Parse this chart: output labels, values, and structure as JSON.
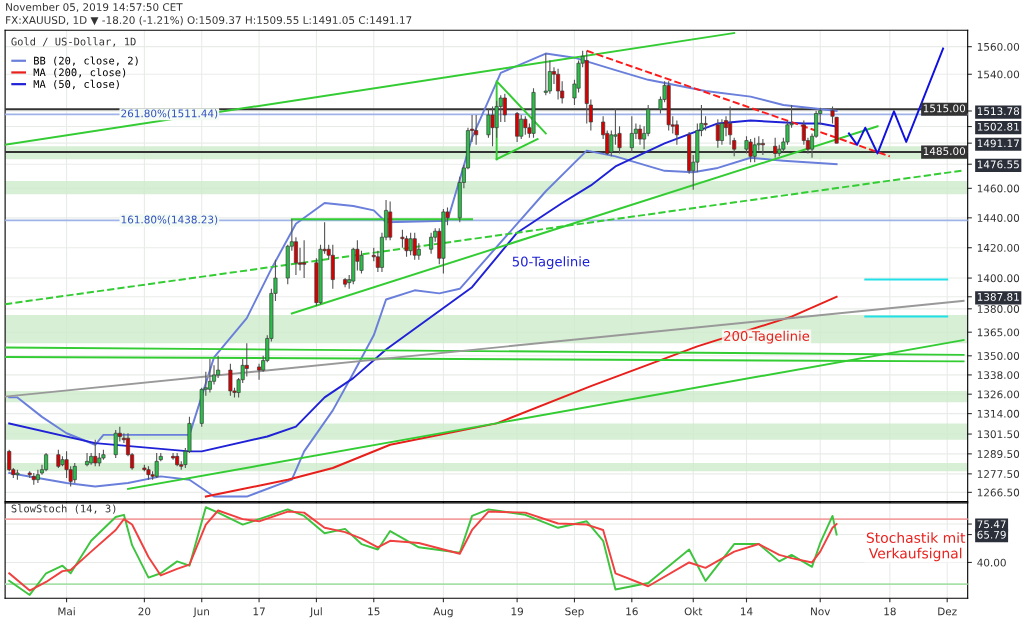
{
  "chart_data": [
    {
      "type": "candlestick",
      "title": "Gold / US-Dollar, 1D",
      "subtitle": "FX:XAUUSD, 1D ▼ -18.20 (-1.21%) O:1509.37 H:1509.55 L:1491.05 C:1491.17",
      "x": [
        "2019-04-17",
        "2019-04-18",
        "2019-04-19",
        "2019-04-22",
        "2019-04-23",
        "2019-04-24",
        "2019-04-25",
        "2019-04-26",
        "2019-04-29",
        "2019-04-30",
        "2019-05-01",
        "2019-05-02",
        "2019-05-03",
        "2019-05-06",
        "2019-05-07",
        "2019-05-08",
        "2019-05-09",
        "2019-05-10",
        "2019-05-13",
        "2019-05-14",
        "2019-05-15",
        "2019-05-16",
        "2019-05-17",
        "2019-05-20",
        "2019-05-21",
        "2019-05-22",
        "2019-05-23",
        "2019-05-24",
        "2019-05-27",
        "2019-05-28",
        "2019-05-29",
        "2019-05-30",
        "2019-05-31",
        "2019-06-03",
        "2019-06-04",
        "2019-06-05",
        "2019-06-06",
        "2019-06-07",
        "2019-06-10",
        "2019-06-11",
        "2019-06-12",
        "2019-06-13",
        "2019-06-14",
        "2019-06-17",
        "2019-06-18",
        "2019-06-19",
        "2019-06-20",
        "2019-06-21",
        "2019-06-24",
        "2019-06-25",
        "2019-06-26",
        "2019-06-27",
        "2019-06-28",
        "2019-07-01",
        "2019-07-02",
        "2019-07-03",
        "2019-07-04",
        "2019-07-05",
        "2019-07-08",
        "2019-07-09",
        "2019-07-10",
        "2019-07-11",
        "2019-07-12",
        "2019-07-15",
        "2019-07-16",
        "2019-07-17",
        "2019-07-18",
        "2019-07-19",
        "2019-07-22",
        "2019-07-23",
        "2019-07-24",
        "2019-07-25",
        "2019-07-26",
        "2019-07-29",
        "2019-07-30",
        "2019-07-31",
        "2019-08-01",
        "2019-08-02",
        "2019-08-05",
        "2019-08-06",
        "2019-08-07",
        "2019-08-08",
        "2019-08-09",
        "2019-08-12",
        "2019-08-13",
        "2019-08-14",
        "2019-08-15",
        "2019-08-16",
        "2019-08-19",
        "2019-08-20",
        "2019-08-21",
        "2019-08-22",
        "2019-08-23",
        "2019-08-26",
        "2019-08-27",
        "2019-08-28",
        "2019-08-29",
        "2019-08-30",
        "2019-09-02",
        "2019-09-03",
        "2019-09-04",
        "2019-09-05",
        "2019-09-06",
        "2019-09-09",
        "2019-09-10",
        "2019-09-11",
        "2019-09-12",
        "2019-09-13",
        "2019-09-16",
        "2019-09-17",
        "2019-09-18",
        "2019-09-19",
        "2019-09-20",
        "2019-09-23",
        "2019-09-24",
        "2019-09-25",
        "2019-09-26",
        "2019-09-27",
        "2019-09-30",
        "2019-10-01",
        "2019-10-02",
        "2019-10-03",
        "2019-10-04",
        "2019-10-07",
        "2019-10-08",
        "2019-10-09",
        "2019-10-10",
        "2019-10-11",
        "2019-10-14",
        "2019-10-15",
        "2019-10-16",
        "2019-10-17",
        "2019-10-18",
        "2019-10-21",
        "2019-10-22",
        "2019-10-23",
        "2019-10-24",
        "2019-10-25",
        "2019-10-28",
        "2019-10-29",
        "2019-10-30",
        "2019-10-31",
        "2019-11-01",
        "2019-11-04",
        "2019-11-05"
      ],
      "ohlc": [
        [
          1291,
          1292,
          1279,
          1280
        ],
        [
          1280,
          1281,
          1275,
          1277
        ],
        [
          1277,
          1280,
          1274,
          1278
        ],
        [
          1278,
          1279,
          1275,
          1277
        ],
        [
          1276,
          1278,
          1271,
          1274
        ],
        [
          1274,
          1280,
          1272,
          1277
        ],
        [
          1278,
          1283,
          1277,
          1280
        ],
        [
          1280,
          1290,
          1279,
          1289
        ],
        [
          1289,
          1292,
          1281,
          1282
        ],
        [
          1283,
          1288,
          1282,
          1286
        ],
        [
          1286,
          1291,
          1275,
          1280
        ],
        [
          1280,
          1282,
          1270,
          1273
        ],
        [
          1274,
          1284,
          1272,
          1282
        ],
        [
          1283,
          1290,
          1282,
          1285
        ],
        [
          1284,
          1290,
          1283,
          1288
        ],
        [
          1288,
          1298,
          1282,
          1284
        ],
        [
          1284,
          1290,
          1282,
          1287
        ],
        [
          1287,
          1292,
          1286,
          1289
        ],
        [
          1289,
          1304,
          1287,
          1302
        ],
        [
          1302,
          1306,
          1297,
          1300
        ],
        [
          1299,
          1302,
          1296,
          1298
        ],
        [
          1299,
          1302,
          1288,
          1289
        ],
        [
          1289,
          1290,
          1280,
          1281
        ],
        [
          1281,
          1283,
          1279,
          1280
        ],
        [
          1280,
          1282,
          1274,
          1277
        ],
        [
          1277,
          1279,
          1274,
          1276
        ],
        [
          1276,
          1290,
          1275,
          1285
        ],
        [
          1286,
          1290,
          1285,
          1288
        ],
        [
          1288,
          1290,
          1286,
          1287
        ],
        [
          1288,
          1290,
          1282,
          1283
        ],
        [
          1283,
          1285,
          1280,
          1282
        ],
        [
          1283,
          1293,
          1281,
          1291
        ],
        [
          1291,
          1312,
          1290,
          1308
        ],
        [
          1308,
          1330,
          1306,
          1329
        ],
        [
          1329,
          1340,
          1325,
          1330
        ],
        [
          1329,
          1348,
          1327,
          1334
        ],
        [
          1334,
          1344,
          1332,
          1338
        ],
        [
          1338,
          1350,
          1336,
          1341
        ],
        [
          1341,
          1345,
          1325,
          1328
        ],
        [
          1328,
          1330,
          1324,
          1327
        ],
        [
          1327,
          1336,
          1324,
          1335
        ],
        [
          1335,
          1348,
          1333,
          1344
        ],
        [
          1344,
          1358,
          1337,
          1342
        ],
        [
          1343,
          1345,
          1335,
          1341
        ],
        [
          1341,
          1350,
          1340,
          1347
        ],
        [
          1347,
          1363,
          1346,
          1361
        ],
        [
          1361,
          1393,
          1359,
          1390
        ],
        [
          1390,
          1412,
          1385,
          1400
        ],
        [
          1400,
          1422,
          1396,
          1421
        ],
        [
          1421,
          1439,
          1418,
          1424
        ],
        [
          1424,
          1427,
          1402,
          1410
        ],
        [
          1410,
          1420,
          1405,
          1409
        ],
        [
          1410,
          1425,
          1400,
          1409
        ],
        [
          1410,
          1413,
          1382,
          1384
        ],
        [
          1384,
          1422,
          1383,
          1419
        ],
        [
          1419,
          1437,
          1416,
          1418
        ],
        [
          1419,
          1422,
          1412,
          1415
        ],
        [
          1415,
          1422,
          1393,
          1399
        ],
        [
          1399,
          1400,
          1394,
          1396
        ],
        [
          1397,
          1402,
          1393,
          1399
        ],
        [
          1398,
          1420,
          1396,
          1419
        ],
        [
          1419,
          1425,
          1405,
          1411
        ],
        [
          1405,
          1418,
          1403,
          1415
        ],
        [
          1415,
          1420,
          1411,
          1414
        ],
        [
          1414,
          1418,
          1404,
          1407
        ],
        [
          1407,
          1430,
          1404,
          1427
        ],
        [
          1427,
          1452,
          1425,
          1445
        ],
        [
          1444,
          1451,
          1425,
          1427
        ],
        [
          1427,
          1432,
          1420,
          1426
        ],
        [
          1426,
          1428,
          1414,
          1418
        ],
        [
          1418,
          1430,
          1415,
          1426
        ],
        [
          1426,
          1430,
          1412,
          1415
        ],
        [
          1415,
          1423,
          1412,
          1419
        ],
        [
          1419,
          1430,
          1416,
          1427
        ],
        [
          1427,
          1433,
          1424,
          1431
        ],
        [
          1431,
          1433,
          1409,
          1413
        ],
        [
          1413,
          1446,
          1403,
          1444
        ],
        [
          1444,
          1447,
          1435,
          1440
        ],
        [
          1440,
          1468,
          1437,
          1464
        ],
        [
          1464,
          1476,
          1460,
          1474
        ],
        [
          1474,
          1502,
          1473,
          1500
        ],
        [
          1501,
          1511,
          1492,
          1500
        ],
        [
          1500,
          1511,
          1490,
          1497
        ],
        [
          1497,
          1515,
          1495,
          1511
        ],
        [
          1511,
          1517,
          1489,
          1502
        ],
        [
          1502,
          1521,
          1495,
          1517
        ],
        [
          1517,
          1525,
          1506,
          1523
        ],
        [
          1523,
          1526,
          1506,
          1511
        ],
        [
          1512,
          1513,
          1492,
          1496
        ],
        [
          1496,
          1511,
          1494,
          1508
        ],
        [
          1508,
          1510,
          1497,
          1502
        ],
        [
          1502,
          1505,
          1495,
          1498
        ],
        [
          1498,
          1530,
          1495,
          1527
        ],
        [
          1527,
          1555,
          1525,
          1528
        ],
        [
          1528,
          1550,
          1526,
          1542
        ],
        [
          1542,
          1545,
          1533,
          1540
        ],
        [
          1540,
          1544,
          1522,
          1528
        ],
        [
          1528,
          1535,
          1519,
          1523
        ],
        [
          1523,
          1536,
          1518,
          1533
        ],
        [
          1530,
          1550,
          1527,
          1548
        ],
        [
          1548,
          1557,
          1545,
          1553
        ],
        [
          1550,
          1557,
          1505,
          1519
        ],
        [
          1518,
          1522,
          1500,
          1506
        ],
        [
          1506,
          1510,
          1494,
          1497
        ],
        [
          1498,
          1500,
          1483,
          1484
        ],
        [
          1485,
          1500,
          1482,
          1497
        ],
        [
          1496,
          1515,
          1490,
          1497
        ],
        [
          1498,
          1503,
          1484,
          1488
        ],
        [
          1488,
          1510,
          1485,
          1498
        ],
        [
          1498,
          1505,
          1494,
          1501
        ],
        [
          1501,
          1504,
          1490,
          1494
        ],
        [
          1494,
          1503,
          1487,
          1498
        ],
        [
          1498,
          1518,
          1496,
          1515
        ],
        [
          1515,
          1524,
          1512,
          1522
        ],
        [
          1522,
          1535,
          1520,
          1532
        ],
        [
          1532,
          1535,
          1500,
          1504
        ],
        [
          1504,
          1510,
          1498,
          1503
        ],
        [
          1504,
          1507,
          1490,
          1497
        ],
        [
          1497,
          1499,
          1470,
          1472
        ],
        [
          1472,
          1483,
          1459,
          1478
        ],
        [
          1478,
          1505,
          1471,
          1500
        ],
        [
          1500,
          1518,
          1496,
          1505
        ],
        [
          1505,
          1510,
          1500,
          1504
        ],
        [
          1504,
          1508,
          1488,
          1493
        ],
        [
          1493,
          1508,
          1490,
          1505
        ],
        [
          1507,
          1510,
          1496,
          1502
        ],
        [
          1505,
          1517,
          1490,
          1497
        ],
        [
          1493,
          1495,
          1482,
          1487
        ],
        [
          1487,
          1496,
          1484,
          1493
        ],
        [
          1492,
          1494,
          1478,
          1482
        ],
        [
          1482,
          1495,
          1478,
          1490
        ],
        [
          1490,
          1496,
          1486,
          1491
        ],
        [
          1491,
          1494,
          1483,
          1490
        ],
        [
          1489,
          1495,
          1481,
          1484
        ],
        [
          1484,
          1490,
          1482,
          1487
        ],
        [
          1487,
          1495,
          1485,
          1492
        ],
        [
          1492,
          1507,
          1490,
          1504
        ],
        [
          1504,
          1518,
          1502,
          1505
        ],
        [
          1504,
          1507,
          1490,
          1493
        ],
        [
          1493,
          1495,
          1484,
          1487
        ],
        [
          1487,
          1498,
          1481,
          1496
        ],
        [
          1496,
          1514,
          1495,
          1512
        ],
        [
          1512,
          1516,
          1504,
          1514
        ],
        [
          1514,
          1517,
          1505,
          1510
        ],
        [
          1509.37,
          1509.55,
          1491.05,
          1491.17
        ]
      ],
      "series": [
        {
          "type": "line",
          "name": "BB (20, close, 2)",
          "color": "#6a7fdb",
          "x": [
            "2019-04-17",
            "2019-04-19",
            "2019-04-25",
            "2019-05-01",
            "2019-05-08",
            "2019-05-10",
            "2019-05-24",
            "2019-05-31",
            "2019-06-06",
            "2019-06-14",
            "2019-06-20",
            "2019-06-26",
            "2019-07-03",
            "2019-07-10",
            "2019-07-15",
            "2019-07-18",
            "2019-08-02",
            "2019-08-08",
            "2019-08-15",
            "2019-08-26",
            "2019-09-02",
            "2019-09-12",
            "2019-09-20",
            "2019-10-04",
            "2019-10-15",
            "2019-10-23",
            "2019-11-05"
          ],
          "values": [
            1324,
            1324,
            1312,
            1302,
            1295,
            1301,
            1301,
            1301,
            1349,
            1374,
            1406,
            1436,
            1450,
            1448,
            1445,
            1437,
            1438,
            1495,
            1541,
            1555,
            1552,
            1543,
            1536,
            1528,
            1524,
            1518,
            1513.78
          ]
        },
        {
          "type": "line",
          "color": "#6a7fdb",
          "x": [
            "2019-04-17",
            "2019-04-24",
            "2019-05-01",
            "2019-05-08",
            "2019-05-16",
            "2019-05-24",
            "2019-05-31",
            "2019-06-06",
            "2019-06-14",
            "2019-06-25",
            "2019-06-28",
            "2019-07-05",
            "2019-07-10",
            "2019-07-15",
            "2019-07-18",
            "2019-07-25",
            "2019-07-31",
            "2019-08-05",
            "2019-08-26",
            "2019-09-05",
            "2019-09-12",
            "2019-09-24",
            "2019-10-01",
            "2019-10-07",
            "2019-10-15",
            "2019-10-23",
            "2019-11-05"
          ],
          "values": [
            1278,
            1275,
            1272,
            1270,
            1272,
            1276,
            1274,
            1264,
            1264,
            1274,
            1291,
            1316,
            1339,
            1363,
            1386,
            1392,
            1390,
            1393,
            1458,
            1486,
            1482,
            1472,
            1471,
            1474,
            1481,
            1479,
            1476.55
          ]
        },
        {
          "type": "line",
          "name": "MA (200, close)",
          "color": "#e8201c",
          "x": [
            "2019-06-04",
            "2019-06-24",
            "2019-07-05",
            "2019-07-19",
            "2019-08-14",
            "2019-09-06",
            "2019-10-02",
            "2019-10-25",
            "2019-11-05"
          ],
          "values": [
            1264,
            1274,
            1281,
            1295,
            1308,
            1331,
            1356,
            1375,
            1387.81
          ]
        },
        {
          "type": "line",
          "name": "MA (50, close)",
          "color": "#1f22d6",
          "x": [
            "2019-04-17",
            "2019-05-08",
            "2019-05-31",
            "2019-06-03",
            "2019-06-19",
            "2019-06-26",
            "2019-07-03",
            "2019-07-10",
            "2019-07-18",
            "2019-08-08",
            "2019-08-19",
            "2019-08-30",
            "2019-09-06",
            "2019-09-12",
            "2019-09-24",
            "2019-10-07",
            "2019-10-15",
            "2019-10-28",
            "2019-11-01",
            "2019-11-05"
          ],
          "values": [
            1308,
            1296,
            1291,
            1291,
            1300,
            1306,
            1324,
            1336,
            1354,
            1394,
            1430,
            1450,
            1462,
            1475,
            1491,
            1505,
            1507,
            1505,
            1505,
            1502.81
          ]
        },
        {
          "type": "line",
          "color": "#33cc33",
          "x": [
            "2019-04-16",
            "2019-10-11"
          ],
          "values": [
            1490,
            1570
          ]
        },
        {
          "type": "line",
          "color": "#33cc33",
          "x": [
            "2019-05-16",
            "2019-12-06"
          ],
          "values": [
            1268.5,
            1360
          ]
        },
        {
          "type": "line",
          "color": "#33cc33",
          "x": [
            "2019-04-16",
            "2019-12-06"
          ],
          "values": [
            1355.3,
            1350.6
          ]
        },
        {
          "type": "line",
          "color": "#33cc33",
          "x": [
            "2019-04-16",
            "2019-12-06"
          ],
          "values": [
            1349.3,
            1346.5
          ]
        },
        {
          "type": "line",
          "color": "#999999",
          "x": [
            "2019-04-16",
            "2019-12-06"
          ],
          "values": [
            1324.5,
            1385.2
          ]
        },
        {
          "type": "line",
          "color": "#33cc33",
          "x": [
            "2019-06-25",
            "2019-11-15"
          ],
          "values": [
            1377,
            1503
          ]
        },
        {
          "type": "line",
          "color": "#33cc33",
          "line_style": "dashed",
          "x": [
            "2019-04-16",
            "2019-12-06"
          ],
          "values": [
            1383,
            1472.3
          ]
        },
        {
          "type": "line",
          "color": "#ff1a1a",
          "line_style": "dashed",
          "x": [
            "2019-09-05",
            "2019-11-18"
          ],
          "values": [
            1557,
            1482
          ]
        },
        {
          "type": "line",
          "color": "#33cc33",
          "x": [
            "2019-06-25",
            "2019-08-08"
          ],
          "values": [
            1439,
            1439
          ]
        },
        {
          "type": "line",
          "color": "#33cc33",
          "x": [
            "2019-08-14",
            "2019-08-14",
            "2019-08-26"
          ],
          "values": [
            1480,
            1535,
            1498
          ]
        },
        {
          "type": "line",
          "color": "#33cc33",
          "x": [
            "2019-08-14",
            "2019-08-24"
          ],
          "values": [
            1480,
            1494
          ]
        },
        {
          "type": "line",
          "color": "#1010e0",
          "x": [
            "2019-11-08",
            "2019-11-10",
            "2019-11-12",
            "2019-11-15",
            "2019-11-19",
            "2019-11-22",
            "2019-12-01"
          ],
          "values": [
            1498,
            1490,
            1502,
            1484,
            1513.5,
            1492,
            1558.6
          ]
        },
        {
          "type": "line",
          "color": "#22e0e8",
          "x": [
            "2019-11-12",
            "2019-12-02"
          ],
          "values": [
            1399,
            1399
          ]
        },
        {
          "type": "line",
          "color": "#22e0e8",
          "x": [
            "2019-11-12",
            "2019-12-02"
          ],
          "values": [
            1375,
            1375
          ]
        }
      ],
      "bands": [
        {
          "axis": "y",
          "from": 1480,
          "to": 1489,
          "color": "#cdebc9"
        },
        {
          "axis": "y",
          "from": 1456,
          "to": 1465,
          "color": "#cdebc9"
        },
        {
          "axis": "y",
          "from": 1358,
          "to": 1376,
          "color": "#cdebc9"
        },
        {
          "axis": "y",
          "from": 1321,
          "to": 1328,
          "color": "#cdebc9"
        },
        {
          "axis": "y",
          "from": 1298,
          "to": 1308,
          "color": "#cdebc9"
        },
        {
          "axis": "y",
          "from": 1279,
          "to": 1284,
          "color": "#cdebc9"
        }
      ],
      "ref_lines": [
        {
          "axis": "y",
          "value": 1515,
          "label": "1515.00",
          "color": "#333333"
        },
        {
          "axis": "y",
          "value": 1485,
          "label": "1485.00",
          "color": "#333333"
        },
        {
          "axis": "y",
          "value": 1511.44,
          "color": "#9fb3e8"
        },
        {
          "axis": "y",
          "value": 1438.23,
          "color": "#9fb3e8"
        }
      ],
      "annotations": [
        "November 05, 2019 14:57:50 CET",
        {
          "text": "261.80%(1511.44)",
          "x": "2019-06-07",
          "y": 1511.44
        },
        {
          "text": "161.80%(1438.23)",
          "x": "2019-06-07",
          "y": 1438.23
        },
        "50-Tagelinie",
        "200-Tagelinie"
      ],
      "log": true,
      "xlim": [
        "2019-04-16",
        "2019-12-07"
      ],
      "ylim": [
        1261,
        1572
      ],
      "yticks": [
        1513.78,
        1502.81,
        1491.17,
        1476.55,
        1387.81,
        {
          "value": 1560,
          "label": "1560.00"
        },
        {
          "value": 1540,
          "label": "1540.00"
        },
        {
          "value": 1460,
          "label": "1460.00"
        },
        {
          "value": 1440,
          "label": "1440.00"
        },
        {
          "value": 1420,
          "label": "1420.00"
        },
        {
          "value": 1400,
          "label": "1400.00"
        },
        {
          "value": 1380,
          "label": "1380.00"
        },
        {
          "value": 1365,
          "label": "1365.00"
        },
        {
          "value": 1350,
          "label": "1350.00"
        },
        {
          "value": 1338,
          "label": "1338.00"
        },
        {
          "value": 1326,
          "label": "1326.00"
        },
        {
          "value": 1314,
          "label": "1314.00"
        },
        {
          "value": 1301.5,
          "label": "1301.50"
        },
        {
          "value": 1289.5,
          "label": "1289.50"
        },
        {
          "value": 1277.5,
          "label": "1277.50"
        },
        {
          "value": 1266.5,
          "label": "1266.50"
        }
      ],
      "tick_labels": "y",
      "grid": true,
      "legend": "top left"
    },
    {
      "type": "line",
      "title": "SlowStoch (14, 3)",
      "series": [
        {
          "type": "line",
          "color": "#3ec43e",
          "x": [
            "2019-04-17",
            "2019-04-22",
            "2019-04-26",
            "2019-04-30",
            "2019-05-02",
            "2019-05-07",
            "2019-05-13",
            "2019-05-15",
            "2019-05-17",
            "2019-05-21",
            "2019-05-24",
            "2019-05-28",
            "2019-05-31",
            "2019-06-04",
            "2019-06-07",
            "2019-06-13",
            "2019-06-17",
            "2019-06-24",
            "2019-06-28",
            "2019-07-03",
            "2019-07-08",
            "2019-07-12",
            "2019-07-16",
            "2019-07-19",
            "2019-07-26",
            "2019-08-05",
            "2019-08-08",
            "2019-08-12",
            "2019-08-21",
            "2019-08-29",
            "2019-09-05",
            "2019-09-09",
            "2019-09-12",
            "2019-09-20",
            "2019-09-30",
            "2019-10-04",
            "2019-10-11",
            "2019-10-17",
            "2019-10-22",
            "2019-10-25",
            "2019-10-30",
            "2019-11-01",
            "2019-11-04",
            "2019-11-05"
          ],
          "values": [
            23,
            10,
            30,
            37,
            30,
            60,
            82,
            84,
            56,
            26,
            30,
            41,
            37,
            91,
            86,
            75,
            80,
            89,
            83,
            67,
            71,
            57,
            52,
            69,
            54,
            49,
            83,
            89,
            84,
            72,
            78,
            60,
            15,
            21,
            52,
            23,
            57,
            57,
            41,
            47,
            36,
            58,
            83,
            65.79
          ]
        },
        {
          "type": "line",
          "color": "#f04040",
          "x": [
            "2019-04-17",
            "2019-04-22",
            "2019-04-26",
            "2019-04-30",
            "2019-05-02",
            "2019-05-07",
            "2019-05-13",
            "2019-05-15",
            "2019-05-17",
            "2019-05-21",
            "2019-05-24",
            "2019-05-28",
            "2019-05-31",
            "2019-06-04",
            "2019-06-07",
            "2019-06-13",
            "2019-06-17",
            "2019-06-24",
            "2019-06-28",
            "2019-07-03",
            "2019-07-08",
            "2019-07-12",
            "2019-07-16",
            "2019-07-19",
            "2019-07-26",
            "2019-08-05",
            "2019-08-08",
            "2019-08-12",
            "2019-08-21",
            "2019-08-29",
            "2019-09-05",
            "2019-09-09",
            "2019-09-12",
            "2019-09-20",
            "2019-09-30",
            "2019-10-04",
            "2019-10-11",
            "2019-10-17",
            "2019-10-22",
            "2019-10-25",
            "2019-10-30",
            "2019-11-01",
            "2019-11-04",
            "2019-11-05"
          ],
          "values": [
            30,
            14,
            22,
            32,
            33,
            50,
            70,
            80,
            75,
            45,
            28,
            34,
            38,
            75,
            88,
            80,
            78,
            87,
            86,
            72,
            68,
            62,
            54,
            60,
            58,
            48,
            70,
            87,
            86,
            76,
            75,
            70,
            30,
            18,
            40,
            35,
            50,
            57,
            47,
            44,
            40,
            50,
            72,
            75.47
          ]
        }
      ],
      "ref_lines": [
        {
          "axis": "y",
          "value": 80,
          "color": "#f3a0a0"
        },
        {
          "axis": "y",
          "value": 20,
          "color": "#a8e0a8"
        }
      ],
      "annotations": [
        "Stochastik mit\nVerkaufsignal"
      ],
      "xlim": [
        "2019-04-16",
        "2019-12-07"
      ],
      "ylim": [
        7,
        95
      ],
      "xticks": [
        {
          "value": "2019-05-01",
          "label": "Mai"
        },
        {
          "value": "2019-05-20",
          "label": "20"
        },
        {
          "value": "2019-06-03",
          "label": "Jun"
        },
        {
          "value": "2019-06-17",
          "label": "17"
        },
        {
          "value": "2019-07-01",
          "label": "Jul"
        },
        {
          "value": "2019-07-15",
          "label": "15"
        },
        {
          "value": "2019-08-01",
          "label": "Aug"
        },
        {
          "value": "2019-08-19",
          "label": "19"
        },
        {
          "value": "2019-09-02",
          "label": "Sep"
        },
        {
          "value": "2019-09-16",
          "label": "16"
        },
        {
          "value": "2019-10-01",
          "label": "Okt"
        },
        {
          "value": "2019-10-14",
          "label": "14"
        },
        {
          "value": "2019-11-01",
          "label": "Nov"
        },
        {
          "value": "2019-11-18",
          "label": "18"
        },
        {
          "value": "2019-12-02",
          "label": "Dez"
        }
      ],
      "yticks": [
        75.47,
        65.79,
        {
          "value": 40,
          "label": "40.00"
        }
      ],
      "grid": true
    }
  ]
}
